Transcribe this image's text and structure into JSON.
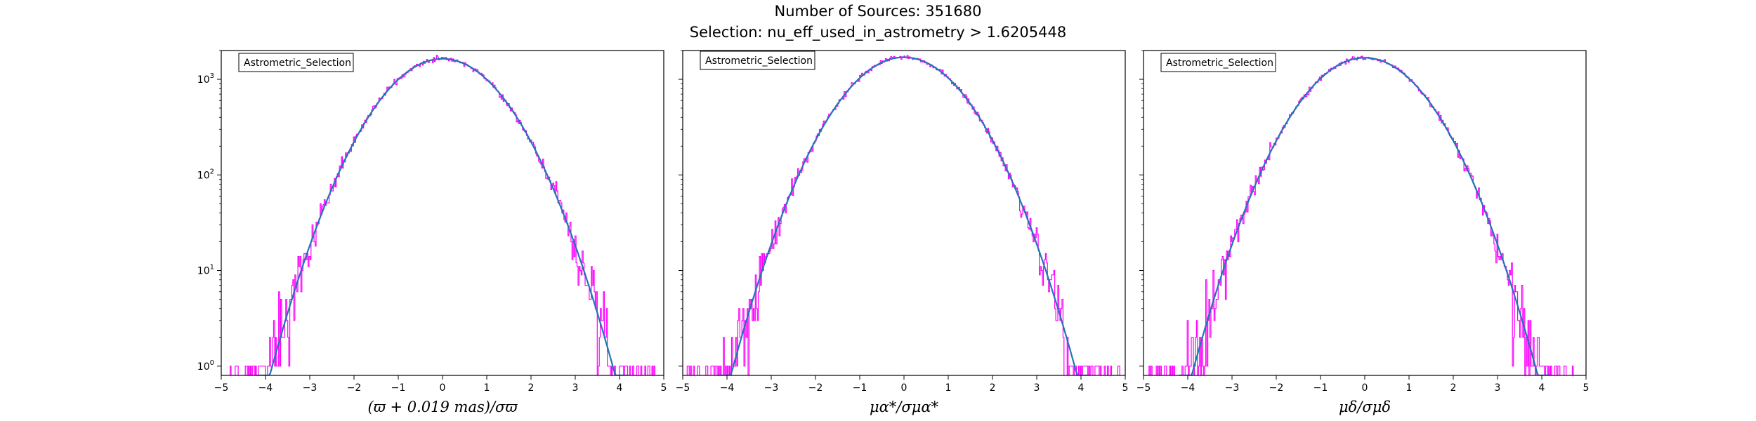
{
  "figure": {
    "title_line1": "Number of Sources: 351680",
    "title_line2": "Selection: nu_eff_used_in_astrometry > 1.6205448"
  },
  "colors": {
    "hist": "#ff00ff",
    "fit": "#1f77b4",
    "axes": "#000000"
  },
  "chart_data": [
    {
      "type": "line",
      "title": "",
      "xlabel": "(ϖ + 0.019 mas)/σϖ",
      "ylabel": "",
      "xlim": [
        -5,
        5
      ],
      "ylim": [
        0.8,
        2000
      ],
      "yscale": "log",
      "xticks": [
        -5,
        -4,
        -3,
        -2,
        -1,
        0,
        1,
        2,
        3,
        4,
        5
      ],
      "yticks": [
        "10^0",
        "10^1",
        "10^2",
        "10^3"
      ],
      "legend": {
        "entries": [
          "Astrometric_Selection"
        ],
        "placement": "upper-left"
      },
      "series": [
        {
          "kind": "histogram-step",
          "peak": 1640,
          "sigma": 1.0,
          "x_range": [
            -4.8,
            4.8
          ]
        },
        {
          "kind": "gaussian-fit",
          "peak": 1640,
          "sigma": 1.0,
          "x_range": [
            -4.2,
            4.2
          ]
        }
      ]
    },
    {
      "type": "line",
      "title": "",
      "xlabel": "μα*/σμα*",
      "ylabel": "",
      "xlim": [
        -5,
        5
      ],
      "ylim": [
        0.8,
        2000
      ],
      "yscale": "log",
      "xticks": [
        -5,
        -4,
        -3,
        -2,
        -1,
        0,
        1,
        2,
        3,
        4,
        5
      ],
      "yticks": [],
      "legend": {
        "entries": [
          "Astrometric_Selection"
        ],
        "placement": "upper-left"
      },
      "series": [
        {
          "kind": "histogram-step",
          "peak": 1700,
          "sigma": 1.0,
          "x_range": [
            -4.9,
            4.9
          ]
        },
        {
          "kind": "gaussian-fit",
          "peak": 1700,
          "sigma": 1.0,
          "x_range": [
            -4.2,
            4.2
          ]
        }
      ]
    },
    {
      "type": "line",
      "title": "",
      "xlabel": "μδ/σμδ",
      "ylabel": "",
      "xlim": [
        -5,
        5
      ],
      "ylim": [
        0.8,
        2000
      ],
      "yscale": "log",
      "xticks": [
        -5,
        -4,
        -3,
        -2,
        -1,
        0,
        1,
        2,
        3,
        4,
        5
      ],
      "yticks": [],
      "legend": {
        "entries": [
          "Astrometric_Selection"
        ],
        "placement": "upper-left"
      },
      "series": [
        {
          "kind": "histogram-step",
          "peak": 1680,
          "sigma": 1.0,
          "x_range": [
            -4.9,
            4.9
          ]
        },
        {
          "kind": "gaussian-fit",
          "peak": 1680,
          "sigma": 1.0,
          "x_range": [
            -4.2,
            4.2
          ]
        }
      ]
    }
  ]
}
